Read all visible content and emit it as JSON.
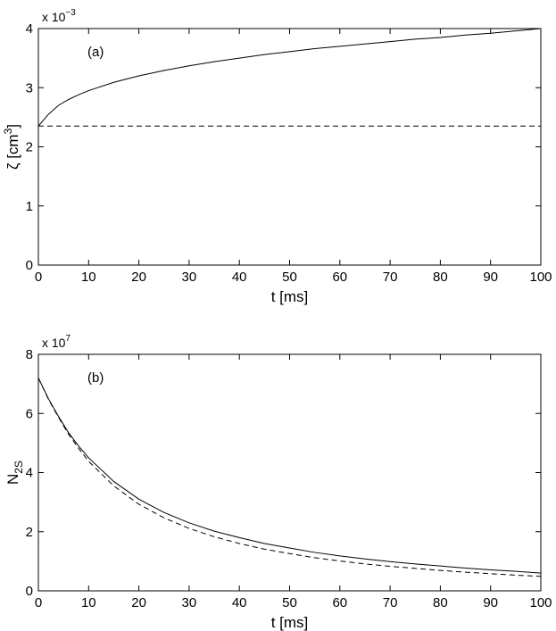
{
  "chart_data": [
    {
      "type": "line",
      "annotation": "(a)",
      "xlabel": "t [ms]",
      "ylabel": "ζ [cm3]",
      "ylabel_parts": {
        "base": "ζ [cm",
        "sup": "3",
        "tail": "]"
      },
      "y_multiplier": {
        "base": "x 10",
        "exp": "−3"
      },
      "xlim": [
        0,
        100
      ],
      "ylim": [
        0,
        4
      ],
      "x_ticks": [
        0,
        10,
        20,
        30,
        40,
        50,
        60,
        70,
        80,
        90,
        100
      ],
      "y_ticks": [
        0,
        1,
        2,
        3,
        4
      ],
      "grid": false,
      "series": [
        {
          "style": "solid",
          "x": [
            0,
            2,
            4,
            6,
            8,
            10,
            15,
            20,
            25,
            30,
            35,
            40,
            45,
            50,
            55,
            60,
            65,
            70,
            75,
            80,
            85,
            90,
            95,
            100
          ],
          "y": [
            2.35,
            2.55,
            2.7,
            2.8,
            2.88,
            2.95,
            3.09,
            3.2,
            3.29,
            3.37,
            3.44,
            3.5,
            3.56,
            3.61,
            3.66,
            3.7,
            3.74,
            3.78,
            3.82,
            3.85,
            3.89,
            3.92,
            3.96,
            4.0
          ]
        },
        {
          "style": "dashed",
          "x": [
            0,
            100
          ],
          "y": [
            2.35,
            2.35
          ]
        }
      ]
    },
    {
      "type": "line",
      "annotation": "(b)",
      "xlabel": "t [ms]",
      "ylabel": "N2S",
      "ylabel_parts": {
        "base": "N",
        "sub": "2S"
      },
      "y_multiplier": {
        "base": "x 10",
        "exp": "7"
      },
      "xlim": [
        0,
        100
      ],
      "ylim": [
        0,
        8
      ],
      "x_ticks": [
        0,
        10,
        20,
        30,
        40,
        50,
        60,
        70,
        80,
        90,
        100
      ],
      "y_ticks": [
        0,
        2,
        4,
        6,
        8
      ],
      "grid": false,
      "series": [
        {
          "style": "solid",
          "x": [
            0,
            2,
            4,
            6,
            8,
            10,
            15,
            20,
            25,
            30,
            35,
            40,
            45,
            50,
            55,
            60,
            65,
            70,
            75,
            80,
            85,
            90,
            95,
            100
          ],
          "y": [
            7.2,
            6.5,
            5.9,
            5.35,
            4.9,
            4.5,
            3.7,
            3.1,
            2.65,
            2.3,
            2.02,
            1.8,
            1.6,
            1.45,
            1.3,
            1.18,
            1.08,
            0.99,
            0.91,
            0.84,
            0.77,
            0.71,
            0.66,
            0.6
          ]
        },
        {
          "style": "dashed",
          "x": [
            0,
            2,
            4,
            6,
            8,
            10,
            15,
            20,
            25,
            30,
            35,
            40,
            45,
            50,
            55,
            60,
            65,
            70,
            75,
            80,
            85,
            90,
            95,
            100
          ],
          "y": [
            7.2,
            6.48,
            5.87,
            5.3,
            4.82,
            4.38,
            3.55,
            2.93,
            2.47,
            2.11,
            1.83,
            1.6,
            1.41,
            1.26,
            1.12,
            1.01,
            0.91,
            0.83,
            0.76,
            0.69,
            0.63,
            0.58,
            0.53,
            0.49
          ]
        }
      ]
    }
  ]
}
